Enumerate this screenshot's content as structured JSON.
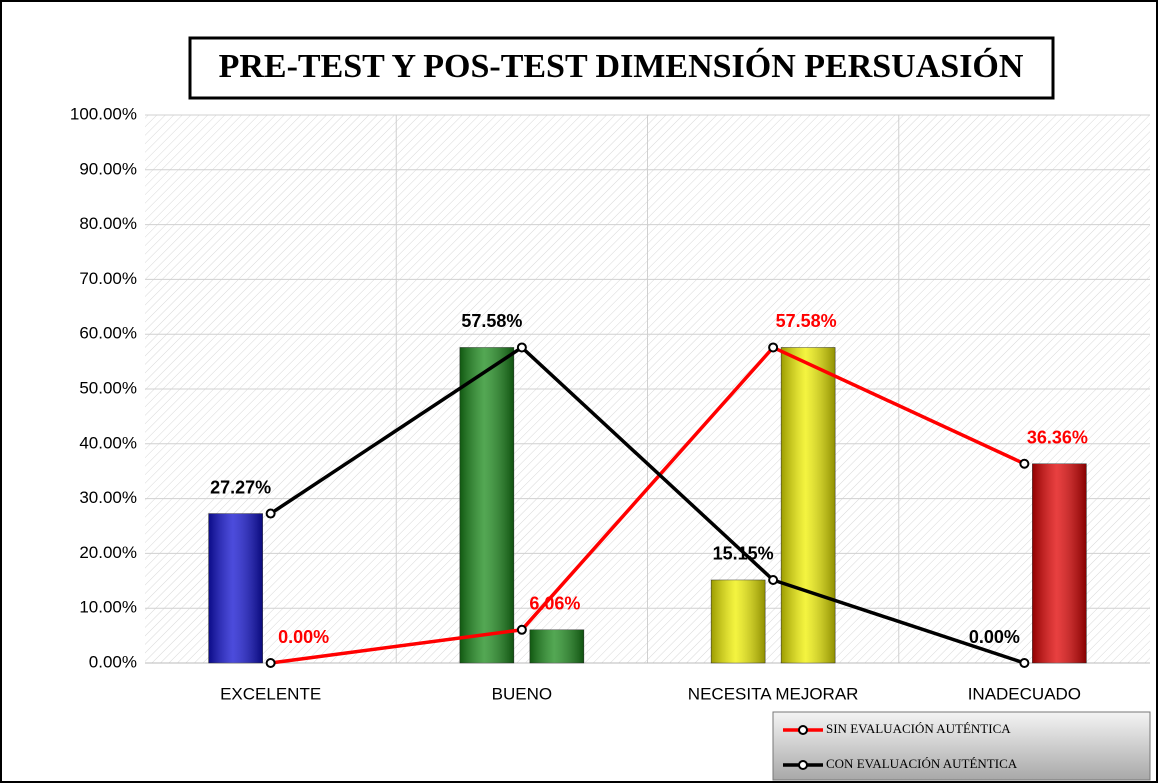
{
  "chart_data": {
    "type": "bar_line",
    "title": "PRE-TEST  Y  POS-TEST DIMENSIÓN PERSUASIÓN",
    "categories": [
      "EXCELENTE",
      "BUENO",
      "NECESITA MEJORAR",
      "INADECUADO"
    ],
    "category_colors": [
      "#1010d0",
      "#1a8a1a",
      "#f0f000",
      "#e00000"
    ],
    "series": [
      {
        "name": "SIN EVALUACIÓN AUTÉNTICA",
        "color": "#ff0000",
        "values": [
          0,
          6.06,
          57.58,
          36.36
        ],
        "value_labels": [
          "0.00%",
          "6.06%",
          "57.58%",
          "36.36%"
        ]
      },
      {
        "name": "CON EVALUACIÓN AUTÉNTICA",
        "color": "#000000",
        "values": [
          27.27,
          57.58,
          15.15,
          0
        ],
        "value_labels": [
          "27.27%",
          "57.58%",
          "15.15%",
          "0.00%"
        ]
      }
    ],
    "ylim": [
      0,
      100
    ],
    "yticks": [
      {
        "value": 0,
        "label": "0.00%"
      },
      {
        "value": 10,
        "label": "10.00%"
      },
      {
        "value": 20,
        "label": "20.00%"
      },
      {
        "value": 30,
        "label": "30.00%"
      },
      {
        "value": 40,
        "label": "40.00%"
      },
      {
        "value": 50,
        "label": "50.00%"
      },
      {
        "value": 60,
        "label": "60.00%"
      },
      {
        "value": 70,
        "label": "70.00%"
      },
      {
        "value": 80,
        "label": "80.00%"
      },
      {
        "value": 90,
        "label": "90.00%"
      },
      {
        "value": 100,
        "label": "100.00%"
      }
    ],
    "grid": true
  }
}
